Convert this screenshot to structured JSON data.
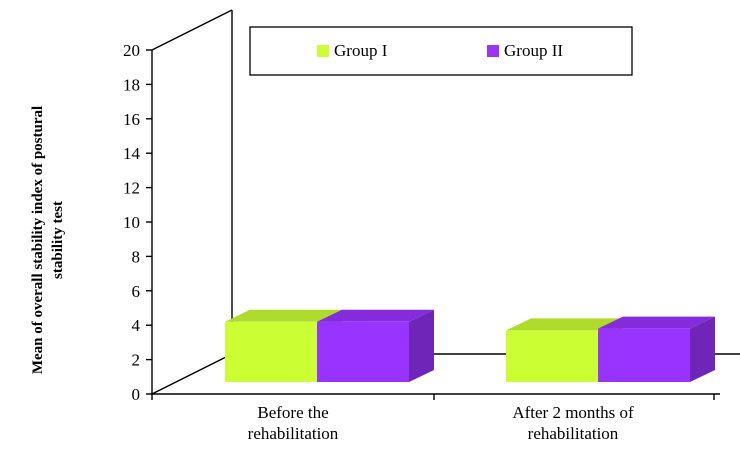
{
  "chart_data": {
    "type": "bar",
    "categories": [
      "Before the rehabilitation",
      "After 2 months of rehabilitation"
    ],
    "category_lines": [
      [
        "Before the",
        "rehabilitation"
      ],
      [
        "After 2 months of",
        "rehabilitation"
      ]
    ],
    "series": [
      {
        "name": "Group I",
        "values": [
          3.5,
          3.0
        ],
        "color": "#ccff33"
      },
      {
        "name": "Group II",
        "values": [
          3.5,
          3.1
        ],
        "color": "#9933ff"
      }
    ],
    "title": "",
    "xlabel": "",
    "ylabel_lines": [
      "Mean of overall stability index of postural",
      "stability test"
    ],
    "ylim": [
      0,
      20
    ],
    "yticks": [
      0,
      2,
      4,
      6,
      8,
      10,
      12,
      14,
      16,
      18,
      20
    ],
    "legend_position": "top",
    "grid": false,
    "style": "3d-column"
  }
}
